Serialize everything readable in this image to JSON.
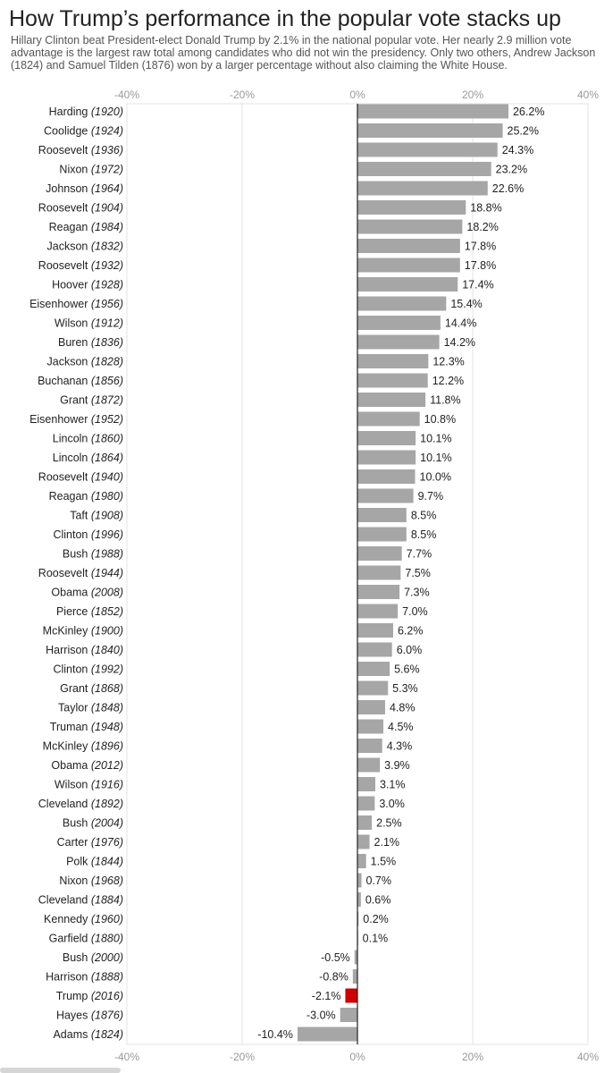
{
  "title": "How Trump’s performance in the popular vote stacks up",
  "subtitle": "Hillary Clinton beat President-elect Donald Trump by 2.1% in the national popular vote. Her nearly 2.9 million vote advantage is the largest raw total among candidates who did not win the presidency. Only two others, Andrew Jackson (1824) and Samuel Tilden (1876) won by a larger percentage without also claiming the White House.",
  "colors": {
    "bar": "#a6a6a6",
    "highlight": "#cc0000",
    "grid": "#e3e3e3",
    "zero_line": "#222222"
  },
  "chart_data": {
    "type": "bar",
    "orientation": "horizontal",
    "xlim": [
      -40,
      40
    ],
    "x_ticks": [
      -40,
      -20,
      0,
      20,
      40
    ],
    "x_tick_labels": [
      "-40%",
      "-20%",
      "0%",
      "20%",
      "40%"
    ],
    "grid": true,
    "highlight": "Trump (2016)",
    "rows": [
      {
        "name": "Harding",
        "year": "(1920)",
        "value": 26.2,
        "label": "26.2%"
      },
      {
        "name": "Coolidge",
        "year": "(1924)",
        "value": 25.2,
        "label": "25.2%"
      },
      {
        "name": "Roosevelt",
        "year": "(1936)",
        "value": 24.3,
        "label": "24.3%"
      },
      {
        "name": "Nixon",
        "year": "(1972)",
        "value": 23.2,
        "label": "23.2%"
      },
      {
        "name": "Johnson",
        "year": "(1964)",
        "value": 22.6,
        "label": "22.6%"
      },
      {
        "name": "Roosevelt",
        "year": "(1904)",
        "value": 18.8,
        "label": "18.8%"
      },
      {
        "name": "Reagan",
        "year": "(1984)",
        "value": 18.2,
        "label": "18.2%"
      },
      {
        "name": "Jackson",
        "year": "(1832)",
        "value": 17.8,
        "label": "17.8%"
      },
      {
        "name": "Roosevelt",
        "year": "(1932)",
        "value": 17.8,
        "label": "17.8%"
      },
      {
        "name": "Hoover",
        "year": "(1928)",
        "value": 17.4,
        "label": "17.4%"
      },
      {
        "name": "Eisenhower",
        "year": "(1956)",
        "value": 15.4,
        "label": "15.4%"
      },
      {
        "name": "Wilson",
        "year": "(1912)",
        "value": 14.4,
        "label": "14.4%"
      },
      {
        "name": "Buren",
        "year": "(1836)",
        "value": 14.2,
        "label": "14.2%"
      },
      {
        "name": "Jackson",
        "year": "(1828)",
        "value": 12.3,
        "label": "12.3%"
      },
      {
        "name": "Buchanan",
        "year": "(1856)",
        "value": 12.2,
        "label": "12.2%"
      },
      {
        "name": "Grant",
        "year": "(1872)",
        "value": 11.8,
        "label": "11.8%"
      },
      {
        "name": "Eisenhower",
        "year": "(1952)",
        "value": 10.8,
        "label": "10.8%"
      },
      {
        "name": "Lincoln",
        "year": "(1860)",
        "value": 10.1,
        "label": "10.1%"
      },
      {
        "name": "Lincoln",
        "year": "(1864)",
        "value": 10.1,
        "label": "10.1%"
      },
      {
        "name": "Roosevelt",
        "year": "(1940)",
        "value": 10.0,
        "label": "10.0%"
      },
      {
        "name": "Reagan",
        "year": "(1980)",
        "value": 9.7,
        "label": "9.7%"
      },
      {
        "name": "Taft",
        "year": "(1908)",
        "value": 8.5,
        "label": "8.5%"
      },
      {
        "name": "Clinton",
        "year": "(1996)",
        "value": 8.5,
        "label": "8.5%"
      },
      {
        "name": "Bush",
        "year": "(1988)",
        "value": 7.7,
        "label": "7.7%"
      },
      {
        "name": "Roosevelt",
        "year": "(1944)",
        "value": 7.5,
        "label": "7.5%"
      },
      {
        "name": "Obama",
        "year": "(2008)",
        "value": 7.3,
        "label": "7.3%"
      },
      {
        "name": "Pierce",
        "year": "(1852)",
        "value": 7.0,
        "label": "7.0%"
      },
      {
        "name": "McKinley",
        "year": "(1900)",
        "value": 6.2,
        "label": "6.2%"
      },
      {
        "name": "Harrison",
        "year": "(1840)",
        "value": 6.0,
        "label": "6.0%"
      },
      {
        "name": "Clinton",
        "year": "(1992)",
        "value": 5.6,
        "label": "5.6%"
      },
      {
        "name": "Grant",
        "year": "(1868)",
        "value": 5.3,
        "label": "5.3%"
      },
      {
        "name": "Taylor",
        "year": "(1848)",
        "value": 4.8,
        "label": "4.8%"
      },
      {
        "name": "Truman",
        "year": "(1948)",
        "value": 4.5,
        "label": "4.5%"
      },
      {
        "name": "McKinley",
        "year": "(1896)",
        "value": 4.3,
        "label": "4.3%"
      },
      {
        "name": "Obama",
        "year": "(2012)",
        "value": 3.9,
        "label": "3.9%"
      },
      {
        "name": "Wilson",
        "year": "(1916)",
        "value": 3.1,
        "label": "3.1%"
      },
      {
        "name": "Cleveland",
        "year": "(1892)",
        "value": 3.0,
        "label": "3.0%"
      },
      {
        "name": "Bush",
        "year": "(2004)",
        "value": 2.5,
        "label": "2.5%"
      },
      {
        "name": "Carter",
        "year": "(1976)",
        "value": 2.1,
        "label": "2.1%"
      },
      {
        "name": "Polk",
        "year": "(1844)",
        "value": 1.5,
        "label": "1.5%"
      },
      {
        "name": "Nixon",
        "year": "(1968)",
        "value": 0.7,
        "label": "0.7%"
      },
      {
        "name": "Cleveland",
        "year": "(1884)",
        "value": 0.6,
        "label": "0.6%"
      },
      {
        "name": "Kennedy",
        "year": "(1960)",
        "value": 0.2,
        "label": "0.2%"
      },
      {
        "name": "Garfield",
        "year": "(1880)",
        "value": 0.1,
        "label": "0.1%"
      },
      {
        "name": "Bush",
        "year": "(2000)",
        "value": -0.5,
        "label": "-0.5%"
      },
      {
        "name": "Harrison",
        "year": "(1888)",
        "value": -0.8,
        "label": "-0.8%"
      },
      {
        "name": "Trump",
        "year": "(2016)",
        "value": -2.1,
        "label": "-2.1%"
      },
      {
        "name": "Hayes",
        "year": "(1876)",
        "value": -3.0,
        "label": "-3.0%"
      },
      {
        "name": "Adams",
        "year": "(1824)",
        "value": -10.4,
        "label": "-10.4%"
      }
    ]
  }
}
